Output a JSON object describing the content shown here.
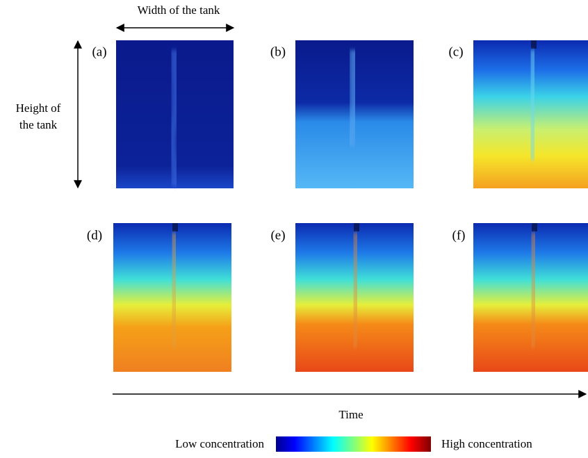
{
  "annotations": {
    "width": "Width of the tank",
    "height": [
      "Height of",
      "the tank"
    ],
    "time": "Time"
  },
  "panels": [
    {
      "label": "(a)"
    },
    {
      "label": "(b)"
    },
    {
      "label": "(c)"
    },
    {
      "label": "(d)"
    },
    {
      "label": "(e)"
    },
    {
      "label": "(f)"
    }
  ],
  "colorbar": {
    "low": "Low concentration",
    "high": "High concentration"
  }
}
